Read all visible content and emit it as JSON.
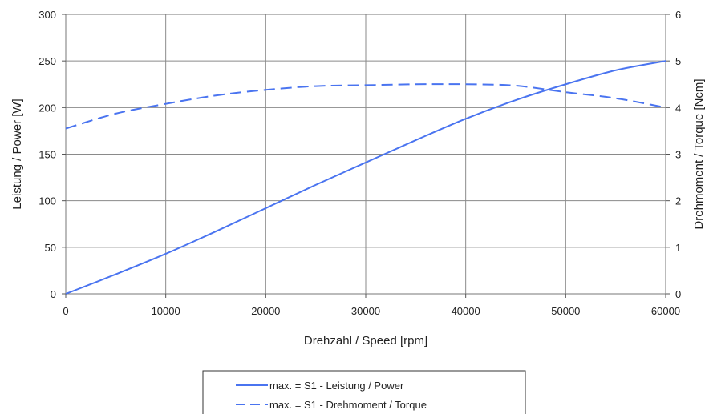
{
  "chart_data": {
    "type": "line",
    "xlabel": "Drehzahl / Speed [rpm]",
    "ylabel_left": "Leistung / Power [W]",
    "ylabel_right": "Drehmoment / Torque [Ncm]",
    "xlim": [
      0,
      60000
    ],
    "ylim_left": [
      0,
      300
    ],
    "ylim_right": [
      0,
      6
    ],
    "x_ticks": [
      0,
      10000,
      20000,
      30000,
      40000,
      50000,
      60000
    ],
    "y_ticks_left": [
      0,
      50,
      100,
      150,
      200,
      250,
      300
    ],
    "y_ticks_right": [
      0,
      1,
      2,
      3,
      4,
      5,
      6
    ],
    "grid": true,
    "legend_position": "bottom-center",
    "series": [
      {
        "name": "max. = S1 - Leistung / Power",
        "axis": "left",
        "style": "solid",
        "color": "#4a74f0",
        "x": [
          0,
          5000,
          10000,
          15000,
          20000,
          25000,
          30000,
          35000,
          40000,
          45000,
          50000,
          55000,
          60000
        ],
        "y": [
          0,
          21,
          43,
          67,
          92,
          117,
          141,
          165,
          188,
          208,
          225,
          240,
          250
        ]
      },
      {
        "name": "max. = S1 - Drehmoment / Torque",
        "axis": "right",
        "style": "dashed",
        "color": "#4a74f0",
        "x": [
          0,
          5000,
          10000,
          15000,
          20000,
          25000,
          30000,
          35000,
          40000,
          45000,
          50000,
          55000,
          60000
        ],
        "y": [
          3.55,
          3.87,
          4.08,
          4.26,
          4.38,
          4.46,
          4.48,
          4.5,
          4.5,
          4.47,
          4.33,
          4.2,
          4.0
        ]
      }
    ]
  }
}
